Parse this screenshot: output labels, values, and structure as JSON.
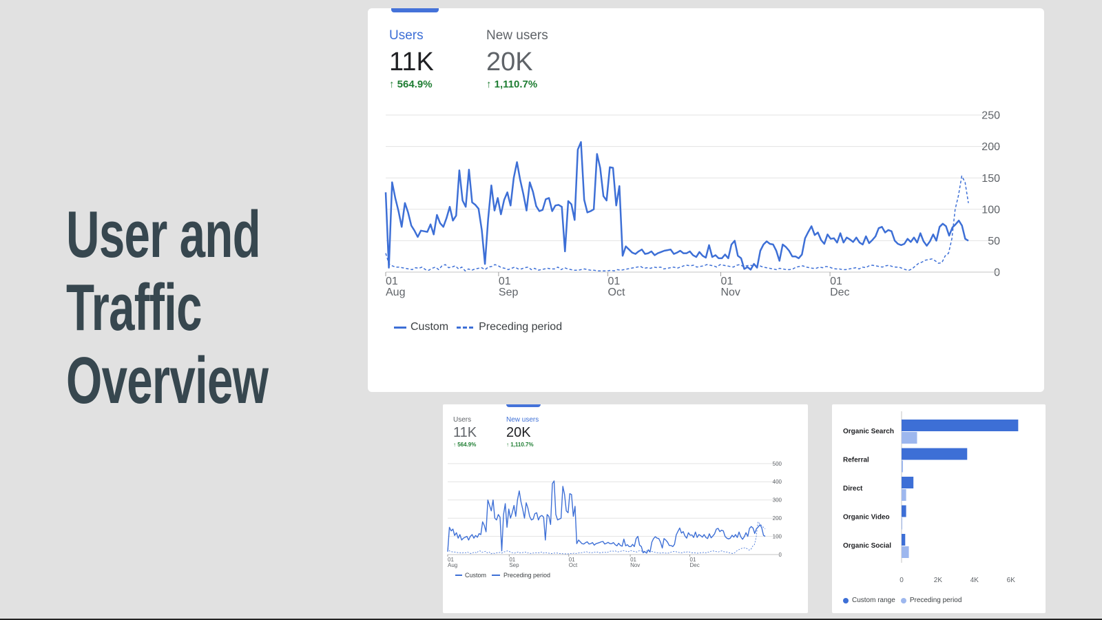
{
  "slide": {
    "title_lines": [
      "User and",
      "Traffic",
      "Overview"
    ]
  },
  "colors": {
    "primary": "#3d6fd6",
    "light": "#9db7ee",
    "positive": "#1e7d32",
    "background": "#e1e1e1"
  },
  "main_card": {
    "metrics": [
      {
        "label": "Users",
        "value": "11K",
        "delta": "564.9%",
        "active": true
      },
      {
        "label": "New users",
        "value": "20K",
        "delta": "1,110.7%",
        "active": false
      }
    ],
    "legend": {
      "custom": "Custom",
      "preceding": "Preceding period"
    }
  },
  "small_card": {
    "metrics": [
      {
        "label": "Users",
        "value": "11K",
        "delta": "564.9%",
        "active": false
      },
      {
        "label": "New users",
        "value": "20K",
        "delta": "1,110.7%",
        "active": true
      }
    ],
    "legend": {
      "custom": "Custom",
      "preceding": "Preceding period"
    }
  },
  "bar_card": {
    "legend": {
      "custom": "Custom range",
      "preceding": "Preceding period"
    }
  },
  "chart_data": [
    {
      "type": "line",
      "id": "users-line",
      "xlabel": "",
      "ylabel": "",
      "ylim": [
        0,
        250
      ],
      "yticks": [
        0,
        50,
        100,
        150,
        200,
        250
      ],
      "xticks": [
        {
          "day": "01",
          "month": "Aug",
          "x": 0
        },
        {
          "day": "01",
          "month": "Sep",
          "x": 31
        },
        {
          "day": "01",
          "month": "Oct",
          "x": 61
        },
        {
          "day": "01",
          "month": "Nov",
          "x": 92
        },
        {
          "day": "01",
          "month": "Dec",
          "x": 122
        }
      ],
      "x_range": [
        0,
        160
      ],
      "grid": true,
      "series": [
        {
          "name": "Custom",
          "style": "solid",
          "values": [
            127,
            7,
            143,
            118,
            97,
            72,
            110,
            95,
            74,
            66,
            56,
            66,
            65,
            64,
            76,
            60,
            91,
            78,
            72,
            86,
            104,
            82,
            90,
            162,
            114,
            104,
            163,
            111,
            107,
            101,
            67,
            13,
            84,
            138,
            98,
            118,
            92,
            115,
            127,
            106,
            150,
            175,
            147,
            124,
            98,
            143,
            128,
            105,
            97,
            99,
            116,
            118,
            97,
            106,
            107,
            104,
            33,
            113,
            108,
            83,
            195,
            207,
            115,
            95,
            97,
            100,
            188,
            166,
            121,
            114,
            167,
            166,
            106,
            137,
            26,
            41,
            36,
            31,
            29,
            33,
            36,
            29,
            30,
            33,
            27,
            30,
            32,
            34,
            35,
            36,
            29,
            31,
            34,
            30,
            30,
            33,
            27,
            24,
            32,
            26,
            23,
            43,
            24,
            27,
            22,
            22,
            28,
            22,
            44,
            50,
            26,
            22,
            5,
            8,
            4,
            13,
            7,
            34,
            44,
            49,
            45,
            44,
            34,
            18,
            44,
            40,
            34,
            25,
            25,
            22,
            28,
            54,
            64,
            73,
            59,
            63,
            51,
            45,
            60,
            53,
            54,
            47,
            62,
            47,
            55,
            52,
            48,
            55,
            47,
            44,
            57,
            46,
            51,
            57,
            70,
            72,
            63,
            67,
            65,
            50,
            45,
            43,
            45,
            53,
            48,
            55,
            47,
            62,
            49,
            42,
            49,
            60,
            50,
            72,
            77,
            73,
            58,
            71,
            76,
            82,
            74,
            53,
            50
          ]
        },
        {
          "name": "Preceding period",
          "style": "dashed",
          "values": [
            30,
            13,
            10,
            8,
            8,
            7,
            6,
            5,
            4,
            7,
            6,
            8,
            4,
            3,
            6,
            8,
            4,
            10,
            12,
            7,
            8,
            10,
            5,
            8,
            2,
            5,
            3,
            5,
            6,
            7,
            4,
            8,
            9,
            12,
            10,
            7,
            6,
            4,
            6,
            8,
            5,
            5,
            7,
            8,
            4,
            6,
            3,
            4,
            5,
            6,
            5,
            5,
            8,
            4,
            7,
            5,
            4,
            3,
            3,
            4,
            5,
            4,
            3,
            3,
            2,
            2,
            2,
            2,
            3,
            2,
            4,
            3,
            4,
            5,
            6,
            7,
            8,
            9,
            6,
            7,
            6,
            8,
            7,
            8,
            5,
            6,
            7,
            8,
            6,
            8,
            10,
            11,
            10,
            11,
            8,
            9,
            10,
            12,
            11,
            10,
            8,
            12,
            11,
            10,
            9,
            8,
            11,
            12,
            9,
            10,
            11,
            10,
            9,
            10,
            8,
            7,
            6,
            5,
            4,
            6,
            5,
            4,
            4,
            5,
            8,
            9,
            10,
            8,
            7,
            6,
            6,
            8,
            7,
            9,
            8,
            6,
            5,
            5,
            4,
            4,
            5,
            6,
            7,
            5,
            8,
            7,
            10,
            11,
            10,
            9,
            8,
            10,
            11,
            9,
            8,
            8,
            6,
            4,
            3,
            5,
            10,
            14,
            16,
            19,
            20,
            21,
            18,
            14,
            15,
            26,
            30,
            53,
            100,
            122,
            153,
            143,
            110
          ]
        }
      ]
    },
    {
      "type": "line",
      "id": "new-users-line",
      "xlabel": "",
      "ylabel": "",
      "ylim": [
        0,
        500
      ],
      "yticks": [
        0,
        100,
        200,
        300,
        400,
        500
      ],
      "xticks": [
        {
          "day": "01",
          "month": "Aug",
          "x": 0
        },
        {
          "day": "01",
          "month": "Sep",
          "x": 31
        },
        {
          "day": "01",
          "month": "Oct",
          "x": 61
        },
        {
          "day": "01",
          "month": "Nov",
          "x": 92
        },
        {
          "day": "01",
          "month": "Dec",
          "x": 122
        }
      ],
      "x_range": [
        0,
        160
      ],
      "grid": true,
      "series": [
        {
          "name": "Custom",
          "style": "solid",
          "values": [
            16,
            150,
            130,
            140,
            105,
            120,
            90,
            110,
            80,
            90,
            95,
            100,
            80,
            100,
            110,
            90,
            105,
            95,
            115,
            110,
            180,
            160,
            125,
            300,
            270,
            240,
            300,
            200,
            190,
            220,
            205,
            20,
            220,
            280,
            150,
            250,
            200,
            230,
            270,
            210,
            300,
            350,
            290,
            250,
            200,
            285,
            255,
            210,
            190,
            195,
            225,
            230,
            190,
            210,
            215,
            205,
            80,
            220,
            210,
            165,
            390,
            405,
            220,
            190,
            195,
            200,
            375,
            330,
            240,
            230,
            335,
            330,
            210,
            265,
            60,
            80,
            70,
            60,
            58,
            65,
            70,
            58,
            60,
            66,
            52,
            60,
            63,
            66,
            70,
            72,
            58,
            62,
            67,
            60,
            60,
            66,
            54,
            48,
            62,
            50,
            46,
            85,
            48,
            54,
            44,
            44,
            56,
            44,
            88,
            100,
            52,
            44,
            10,
            16,
            8,
            26,
            14,
            68,
            88,
            98,
            90,
            88,
            68,
            36,
            88,
            80,
            68,
            50,
            50,
            44,
            56,
            108,
            128,
            146,
            118,
            126,
            102,
            90,
            120,
            106,
            108,
            94,
            124,
            94,
            110,
            104,
            96,
            110,
            94,
            88,
            114,
            92,
            102,
            114,
            140,
            144,
            126,
            134,
            130,
            100,
            90,
            86,
            90,
            106,
            96,
            110,
            94,
            124,
            98,
            84,
            98,
            120,
            100,
            144,
            154,
            146,
            116,
            142,
            152,
            164,
            148,
            106,
            100
          ]
        },
        {
          "name": "Preceding period",
          "style": "dashed",
          "values": [
            36,
            20,
            16,
            14,
            14,
            12,
            10,
            9,
            8,
            12,
            10,
            14,
            8,
            6,
            10,
            14,
            8,
            18,
            20,
            12,
            14,
            18,
            9,
            14,
            4,
            9,
            6,
            9,
            10,
            12,
            8,
            14,
            16,
            20,
            18,
            12,
            10,
            8,
            10,
            14,
            9,
            9,
            12,
            14,
            8,
            10,
            6,
            8,
            9,
            10,
            9,
            9,
            14,
            8,
            12,
            9,
            8,
            6,
            6,
            8,
            9,
            8,
            6,
            6,
            4,
            4,
            4,
            4,
            6,
            4,
            8,
            6,
            8,
            9,
            10,
            12,
            14,
            16,
            10,
            12,
            10,
            14,
            12,
            14,
            9,
            10,
            12,
            14,
            10,
            14,
            18,
            20,
            18,
            20,
            14,
            16,
            18,
            22,
            20,
            18,
            14,
            22,
            20,
            18,
            16,
            14,
            20,
            22,
            16,
            18,
            20,
            18,
            16,
            18,
            14,
            12,
            10,
            9,
            8,
            10,
            9,
            8,
            8,
            9,
            14,
            16,
            18,
            14,
            12,
            10,
            10,
            14,
            12,
            16,
            14,
            10,
            9,
            9,
            8,
            8,
            9,
            10,
            12,
            9,
            14,
            12,
            18,
            20,
            18,
            16,
            14,
            18,
            20,
            16,
            14,
            14,
            10,
            8,
            6,
            9,
            18,
            25,
            29,
            34,
            36,
            38,
            32,
            25,
            27,
            46,
            54,
            95,
            180,
            170,
            160,
            150,
            140
          ]
        }
      ]
    },
    {
      "type": "bar",
      "id": "channel-bar",
      "orientation": "horizontal",
      "categories": [
        "Organic Search",
        "Referral",
        "Direct",
        "Organic Video",
        "Organic Social"
      ],
      "xlim": [
        0,
        6500
      ],
      "xticks": [
        {
          "value": 0,
          "label": "0"
        },
        {
          "value": 2000,
          "label": "2K"
        },
        {
          "value": 4000,
          "label": "4K"
        },
        {
          "value": 6000,
          "label": "6K"
        }
      ],
      "series": [
        {
          "name": "Custom range",
          "values": [
            6400,
            3600,
            650,
            250,
            200
          ],
          "color": "#3d6fd6"
        },
        {
          "name": "Preceding period",
          "values": [
            850,
            30,
            250,
            0,
            400
          ],
          "color": "#9db7ee"
        }
      ]
    }
  ]
}
